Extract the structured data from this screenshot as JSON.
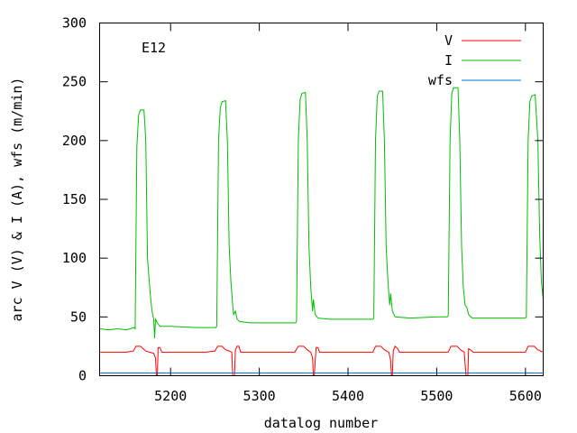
{
  "chart_data": {
    "type": "line",
    "title": "",
    "annotation": "E12",
    "xlabel": "datalog number",
    "ylabel": "arc V (V) & I (A), wfs (m/min)",
    "xlim": [
      5120,
      5620
    ],
    "ylim": [
      0,
      300
    ],
    "xticks": [
      5200,
      5300,
      5400,
      5500,
      5600
    ],
    "yticks": [
      0,
      50,
      100,
      150,
      200,
      250,
      300
    ],
    "grid": false,
    "legend_position": "top-right",
    "series": [
      {
        "name": "V",
        "color": "#ff0000",
        "points": [
          [
            5120,
            20
          ],
          [
            5135,
            20
          ],
          [
            5150,
            20
          ],
          [
            5158,
            21
          ],
          [
            5161,
            25
          ],
          [
            5166,
            25
          ],
          [
            5169,
            23
          ],
          [
            5172,
            21
          ],
          [
            5176,
            20
          ],
          [
            5181,
            19
          ],
          [
            5183,
            15
          ],
          [
            5184,
            0
          ],
          [
            5185,
            0
          ],
          [
            5186,
            24
          ],
          [
            5188,
            24
          ],
          [
            5190,
            20
          ],
          [
            5210,
            20
          ],
          [
            5240,
            20
          ],
          [
            5250,
            21
          ],
          [
            5253,
            25
          ],
          [
            5258,
            25
          ],
          [
            5262,
            22
          ],
          [
            5266,
            21
          ],
          [
            5269,
            20
          ],
          [
            5270,
            0
          ],
          [
            5272,
            0
          ],
          [
            5273,
            22
          ],
          [
            5275,
            25
          ],
          [
            5277,
            25
          ],
          [
            5279,
            20
          ],
          [
            5300,
            20
          ],
          [
            5340,
            20
          ],
          [
            5344,
            25
          ],
          [
            5350,
            25
          ],
          [
            5354,
            22
          ],
          [
            5358,
            20
          ],
          [
            5360,
            15
          ],
          [
            5361,
            0
          ],
          [
            5362,
            0
          ],
          [
            5364,
            24
          ],
          [
            5366,
            24
          ],
          [
            5368,
            20
          ],
          [
            5400,
            20
          ],
          [
            5428,
            20
          ],
          [
            5431,
            25
          ],
          [
            5437,
            25
          ],
          [
            5441,
            22
          ],
          [
            5446,
            20
          ],
          [
            5448,
            13
          ],
          [
            5449,
            0
          ],
          [
            5450,
            0
          ],
          [
            5451,
            21
          ],
          [
            5453,
            25
          ],
          [
            5456,
            23
          ],
          [
            5458,
            20
          ],
          [
            5500,
            20
          ],
          [
            5513,
            20
          ],
          [
            5516,
            25
          ],
          [
            5523,
            25
          ],
          [
            5527,
            22
          ],
          [
            5531,
            20
          ],
          [
            5533,
            0
          ],
          [
            5535,
            0
          ],
          [
            5536,
            23
          ],
          [
            5538,
            22
          ],
          [
            5541,
            20
          ],
          [
            5580,
            20
          ],
          [
            5600,
            20
          ],
          [
            5603,
            25
          ],
          [
            5610,
            25
          ],
          [
            5614,
            22
          ],
          [
            5620,
            20
          ]
        ]
      },
      {
        "name": "I",
        "color": "#00c000",
        "points": [
          [
            5120,
            40
          ],
          [
            5130,
            39
          ],
          [
            5140,
            40
          ],
          [
            5150,
            39
          ],
          [
            5159,
            41
          ],
          [
            5160,
            40
          ],
          [
            5162,
            195
          ],
          [
            5164,
            222
          ],
          [
            5166,
            226
          ],
          [
            5170,
            226
          ],
          [
            5172,
            200
          ],
          [
            5174,
            100
          ],
          [
            5177,
            70
          ],
          [
            5179,
            55
          ],
          [
            5181,
            48
          ],
          [
            5182,
            32
          ],
          [
            5183,
            48
          ],
          [
            5185,
            45
          ],
          [
            5188,
            42
          ],
          [
            5200,
            42
          ],
          [
            5230,
            41
          ],
          [
            5251,
            41
          ],
          [
            5252,
            42
          ],
          [
            5254,
            200
          ],
          [
            5256,
            228
          ],
          [
            5258,
            233
          ],
          [
            5262,
            234
          ],
          [
            5264,
            200
          ],
          [
            5266,
            110
          ],
          [
            5268,
            80
          ],
          [
            5270,
            60
          ],
          [
            5271,
            52
          ],
          [
            5273,
            55
          ],
          [
            5275,
            48
          ],
          [
            5278,
            46
          ],
          [
            5290,
            45
          ],
          [
            5320,
            45
          ],
          [
            5341,
            45
          ],
          [
            5342,
            46
          ],
          [
            5344,
            200
          ],
          [
            5346,
            235
          ],
          [
            5348,
            240
          ],
          [
            5352,
            241
          ],
          [
            5354,
            200
          ],
          [
            5356,
            110
          ],
          [
            5358,
            75
          ],
          [
            5360,
            55
          ],
          [
            5361,
            65
          ],
          [
            5363,
            52
          ],
          [
            5366,
            49
          ],
          [
            5380,
            48
          ],
          [
            5410,
            48
          ],
          [
            5428,
            48
          ],
          [
            5429,
            49
          ],
          [
            5431,
            200
          ],
          [
            5433,
            238
          ],
          [
            5435,
            242
          ],
          [
            5439,
            242
          ],
          [
            5441,
            200
          ],
          [
            5443,
            110
          ],
          [
            5445,
            80
          ],
          [
            5447,
            60
          ],
          [
            5448,
            70
          ],
          [
            5450,
            55
          ],
          [
            5453,
            50
          ],
          [
            5470,
            49
          ],
          [
            5500,
            50
          ],
          [
            5512,
            50
          ],
          [
            5513,
            51
          ],
          [
            5515,
            200
          ],
          [
            5517,
            240
          ],
          [
            5519,
            245
          ],
          [
            5524,
            245
          ],
          [
            5526,
            200
          ],
          [
            5528,
            110
          ],
          [
            5530,
            75
          ],
          [
            5532,
            60
          ],
          [
            5534,
            58
          ],
          [
            5536,
            52
          ],
          [
            5540,
            49
          ],
          [
            5560,
            49
          ],
          [
            5590,
            49
          ],
          [
            5600,
            49
          ],
          [
            5601,
            50
          ],
          [
            5603,
            200
          ],
          [
            5605,
            233
          ],
          [
            5607,
            238
          ],
          [
            5611,
            239
          ],
          [
            5614,
            200
          ],
          [
            5616,
            120
          ],
          [
            5618,
            80
          ],
          [
            5620,
            65
          ]
        ]
      },
      {
        "name": "wfs",
        "color": "#0070e0",
        "points": [
          [
            5120,
            2.3
          ],
          [
            5620,
            2.3
          ]
        ]
      }
    ]
  }
}
